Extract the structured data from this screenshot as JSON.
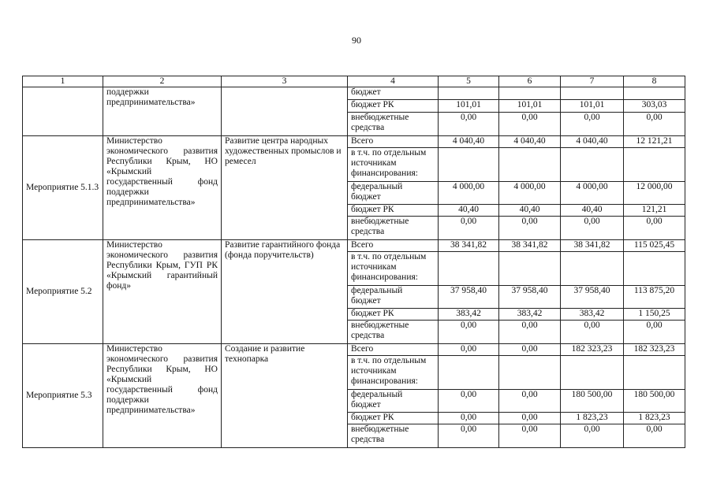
{
  "page_number": "90",
  "headers": [
    "1",
    "2",
    "3",
    "4",
    "5",
    "6",
    "7",
    "8"
  ],
  "continuation": {
    "measure": "",
    "executor": "поддержки предпринимательства»",
    "description": "",
    "rows": [
      {
        "label": "бюджет",
        "values": [
          "",
          "",
          "",
          ""
        ]
      },
      {
        "label": "бюджет РК",
        "values": [
          "101,01",
          "101,01",
          "101,01",
          "303,03"
        ]
      },
      {
        "label": "внебюджетные\nсредства",
        "values": [
          "0,00",
          "0,00",
          "0,00",
          "0,00"
        ]
      }
    ]
  },
  "measures": [
    {
      "measure": "Мероприятие 5.1.3",
      "executor": "Министерство экономического развития Республики Крым, НО «Крымский государственный фонд поддержки предпринимательства»",
      "description": "Развитие центра народных художественных промыслов и ремесел",
      "rows": [
        {
          "label": "Всего",
          "values": [
            "4 040,40",
            "4 040,40",
            "4 040,40",
            "12 121,21"
          ]
        },
        {
          "label": "в т.ч. по отдельным\nисточникам\nфинансирования:",
          "values": [
            "",
            "",
            "",
            ""
          ]
        },
        {
          "label": "федеральный\nбюджет",
          "values": [
            "4 000,00",
            "4 000,00",
            "4 000,00",
            "12 000,00"
          ]
        },
        {
          "label": "бюджет РК",
          "values": [
            "40,40",
            "40,40",
            "40,40",
            "121,21"
          ]
        },
        {
          "label": "внебюджетные\nсредства",
          "values": [
            "0,00",
            "0,00",
            "0,00",
            "0,00"
          ]
        }
      ]
    },
    {
      "measure": "Мероприятие 5.2",
      "executor": "Министерство экономического развития Республики Крым, ГУП РК «Крымский гарантийный фонд»",
      "description": "Развитие гарантийного фонда (фонда поручительств)",
      "rows": [
        {
          "label": "Всего",
          "values": [
            "38 341,82",
            "38 341,82",
            "38 341,82",
            "115 025,45"
          ]
        },
        {
          "label": "в т.ч. по отдельным\nисточникам\nфинансирования:",
          "values": [
            "",
            "",
            "",
            ""
          ]
        },
        {
          "label": "федеральный\nбюджет",
          "values": [
            "37 958,40",
            "37 958,40",
            "37 958,40",
            "113 875,20"
          ]
        },
        {
          "label": "бюджет РК",
          "values": [
            "383,42",
            "383,42",
            "383,42",
            "1 150,25"
          ]
        },
        {
          "label": "внебюджетные\nсредства",
          "values": [
            "0,00",
            "0,00",
            "0,00",
            "0,00"
          ]
        }
      ]
    },
    {
      "measure": "Мероприятие 5.3",
      "executor": "Министерство экономического развития Республики Крым, НО «Крымский государственный фонд поддержки предпринимательства»",
      "description": "Создание и развитие технопарка",
      "rows": [
        {
          "label": "Всего",
          "values": [
            "0,00",
            "0,00",
            "182 323,23",
            "182 323,23"
          ]
        },
        {
          "label": "в т.ч. по отдельным\nисточникам\nфинансирования:",
          "values": [
            "",
            "",
            "",
            ""
          ]
        },
        {
          "label": "федеральный\nбюджет",
          "values": [
            "0,00",
            "0,00",
            "180 500,00",
            "180 500,00"
          ]
        },
        {
          "label": "бюджет РК",
          "values": [
            "0,00",
            "0,00",
            "1 823,23",
            "1 823,23"
          ]
        },
        {
          "label": "внебюджетные\nсредства",
          "values": [
            "0,00",
            "0,00",
            "0,00",
            "0,00"
          ]
        }
      ]
    }
  ]
}
